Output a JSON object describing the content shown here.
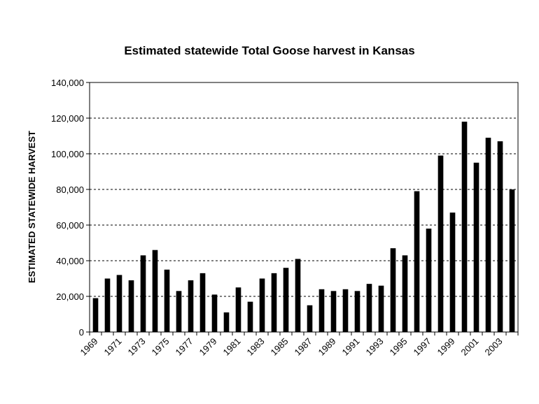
{
  "chart_data": {
    "type": "bar",
    "title": "Estimated statewide Total Goose harvest in Kansas",
    "xlabel": "",
    "ylabel": "ESTIMATED STATEWIDE HARVEST",
    "ylim": [
      0,
      140000
    ],
    "yticks": [
      0,
      20000,
      40000,
      60000,
      80000,
      100000,
      120000,
      140000
    ],
    "ytick_labels": [
      "0",
      "20,000",
      "40,000",
      "60,000",
      "80,000",
      "100,000",
      "120,000",
      "140,000"
    ],
    "grid": "horizontal dashed",
    "legend": "none",
    "bar_color": "#000000",
    "categories": [
      "1969",
      "1970",
      "1971",
      "1972",
      "1973",
      "1974",
      "1975",
      "1976",
      "1977",
      "1978",
      "1979",
      "1980",
      "1981",
      "1982",
      "1983",
      "1984",
      "1985",
      "1986",
      "1987",
      "1988",
      "1989",
      "1990",
      "1991",
      "1992",
      "1993",
      "1994",
      "1995",
      "1996",
      "1997",
      "1998",
      "1999",
      "2000",
      "2001",
      "2002",
      "2003",
      "2004"
    ],
    "x_tick_labels": [
      "1969",
      "1971",
      "1973",
      "1975",
      "1977",
      "1979",
      "1981",
      "1983",
      "1985",
      "1987",
      "1989",
      "1991",
      "1993",
      "1995",
      "1997",
      "1999",
      "2001",
      "2003"
    ],
    "values": [
      19000,
      30000,
      32000,
      29000,
      43000,
      46000,
      35000,
      23000,
      29000,
      33000,
      21000,
      11000,
      25000,
      17000,
      30000,
      33000,
      36000,
      41000,
      15000,
      24000,
      23000,
      24000,
      23000,
      27000,
      26000,
      47000,
      43000,
      79000,
      58000,
      99000,
      67000,
      118000,
      95000,
      109000,
      107000,
      80000
    ]
  }
}
